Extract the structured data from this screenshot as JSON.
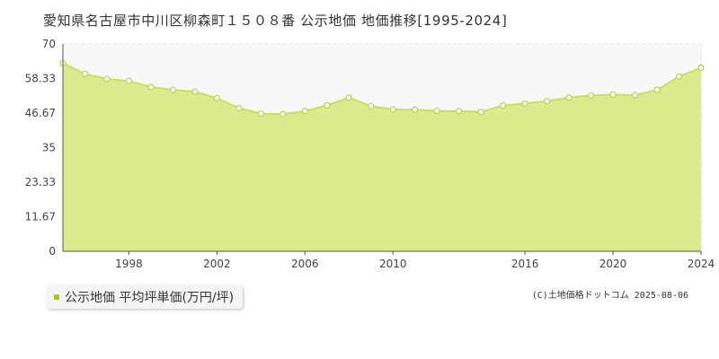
{
  "title": "愛知県名古屋市中川区柳森町１５０８番 公示地価 地価推移[1995-2024]",
  "legend": {
    "label": "公示地価 平均坪単価(万円/坪)"
  },
  "credit": "(C)土地価格ドットコム 2025-08-06",
  "colors": {
    "fill": "#dbeb8e",
    "line": "#c8df5f",
    "gap": "#f8f8f8",
    "marker_stroke": "#b9d24a",
    "legend_swatch": "#a4c82a"
  },
  "chart_data": {
    "type": "area",
    "x": [
      1995,
      1996,
      1997,
      1998,
      1999,
      2000,
      2001,
      2002,
      2003,
      2004,
      2005,
      2006,
      2007,
      2008,
      2009,
      2010,
      2011,
      2012,
      2013,
      2014,
      2015,
      2016,
      2017,
      2018,
      2019,
      2020,
      2021,
      2022,
      2023,
      2024
    ],
    "values": [
      63.5,
      59.9,
      58.2,
      57.5,
      55.5,
      54.5,
      53.9,
      51.7,
      48.3,
      46.5,
      46.3,
      47.3,
      49.3,
      51.9,
      49.0,
      47.9,
      47.8,
      47.4,
      47.3,
      47.1,
      49.2,
      49.9,
      50.7,
      51.9,
      52.6,
      52.9,
      52.7,
      54.5,
      59.0,
      62.0
    ],
    "ylim": [
      0,
      70
    ],
    "yticks": [
      "0",
      "11.67",
      "23.33",
      "35",
      "46.67",
      "58.33",
      "70"
    ],
    "xticks": [
      "1998",
      "2002",
      "2006",
      "2010",
      "2016",
      "2020",
      "2024"
    ],
    "grid": true
  }
}
